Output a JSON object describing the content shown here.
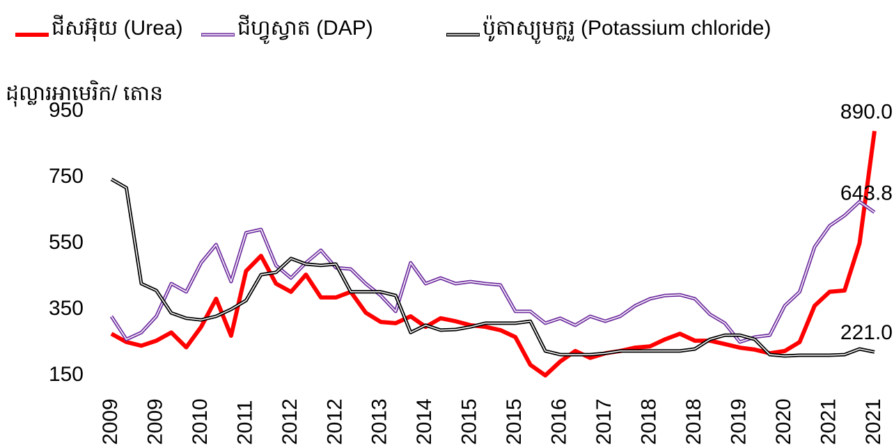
{
  "chart_data": {
    "type": "line",
    "y_label": "ដុល្លារអាមេរិក/ តោន",
    "categories": [
      "2009",
      null,
      null,
      "2009",
      null,
      null,
      "2010",
      null,
      null,
      "2011",
      null,
      null,
      "2012",
      null,
      null,
      "2012",
      null,
      null,
      "2013",
      null,
      null,
      "2014",
      null,
      null,
      "2015",
      null,
      null,
      "2015",
      null,
      null,
      "2016",
      null,
      null,
      "2017",
      null,
      null,
      "2018",
      null,
      null,
      "2018",
      null,
      null,
      "2019",
      null,
      null,
      "2020",
      null,
      null,
      "2021",
      null,
      null,
      "2021"
    ],
    "series": [
      {
        "name": "ជីសអ៊ុយ (Urea)",
        "color": "#ff0000",
        "style": "solid",
        "values": [
          276,
          251,
          240,
          255,
          280,
          235,
          297,
          382,
          270,
          466,
          512,
          428,
          403,
          455,
          386,
          386,
          403,
          340,
          312,
          308,
          329,
          297,
          323,
          314,
          302,
          297,
          287,
          266,
          182,
          150,
          192,
          224,
          203,
          217,
          224,
          234,
          238,
          259,
          276,
          255,
          255,
          245,
          234,
          228,
          217,
          224,
          251,
          361,
          403,
          407,
          550,
          890
        ],
        "value_labels": [
          null,
          null,
          null,
          null,
          null,
          null,
          null,
          null,
          null,
          null,
          null,
          null,
          null,
          null,
          null,
          null,
          null,
          null,
          null,
          null,
          null,
          null,
          null,
          null,
          null,
          null,
          null,
          null,
          null,
          null,
          null,
          null,
          null,
          null,
          null,
          null,
          null,
          null,
          null,
          null,
          null,
          null,
          null,
          null,
          null,
          null,
          null,
          null,
          null,
          null,
          null,
          "890.0"
        ]
      },
      {
        "name": "ជីហ្វូស្វាត (DAP)",
        "color": "#7030a0",
        "style": "double",
        "values": [
          329,
          259,
          280,
          329,
          428,
          403,
          491,
          546,
          434,
          582,
          592,
          483,
          445,
          491,
          529,
          476,
          472,
          428,
          392,
          344,
          491,
          428,
          445,
          428,
          434,
          428,
          424,
          344,
          344,
          308,
          323,
          302,
          329,
          314,
          329,
          361,
          382,
          392,
          394,
          382,
          335,
          308,
          251,
          266,
          272,
          361,
          403,
          539,
          603,
          634,
          676,
          643.8
        ],
        "value_labels": [
          null,
          null,
          null,
          null,
          null,
          null,
          null,
          null,
          null,
          null,
          null,
          null,
          null,
          null,
          null,
          null,
          null,
          null,
          null,
          null,
          null,
          null,
          null,
          null,
          null,
          null,
          null,
          null,
          null,
          null,
          null,
          null,
          null,
          null,
          null,
          null,
          null,
          null,
          null,
          null,
          null,
          null,
          null,
          null,
          null,
          null,
          null,
          null,
          null,
          null,
          null,
          "643.8"
        ]
      },
      {
        "name": "ប៉ូតាស្យូមក្លរួ (Potassium chloride)",
        "color": "#000000",
        "style": "double",
        "values": [
          744,
          718,
          428,
          407,
          339,
          323,
          318,
          329,
          350,
          377,
          455,
          462,
          504,
          487,
          483,
          487,
          403,
          403,
          403,
          392,
          280,
          302,
          287,
          289,
          297,
          308,
          308,
          308,
          314,
          224,
          213,
          213,
          213,
          217,
          224,
          224,
          224,
          224,
          224,
          230,
          259,
          272,
          272,
          259,
          213,
          209,
          211,
          211,
          211,
          213,
          230,
          221
        ],
        "value_labels": [
          null,
          null,
          null,
          null,
          null,
          null,
          null,
          null,
          null,
          null,
          null,
          null,
          null,
          null,
          null,
          null,
          null,
          null,
          null,
          null,
          null,
          null,
          null,
          null,
          null,
          null,
          null,
          null,
          null,
          null,
          null,
          null,
          null,
          null,
          null,
          null,
          null,
          null,
          null,
          null,
          null,
          null,
          null,
          null,
          null,
          null,
          null,
          null,
          null,
          null,
          null,
          "221.0"
        ]
      }
    ],
    "ylim": [
      150,
      950
    ],
    "yticks": [
      150,
      350,
      550,
      750,
      950
    ],
    "grid": false,
    "legend": "top"
  }
}
